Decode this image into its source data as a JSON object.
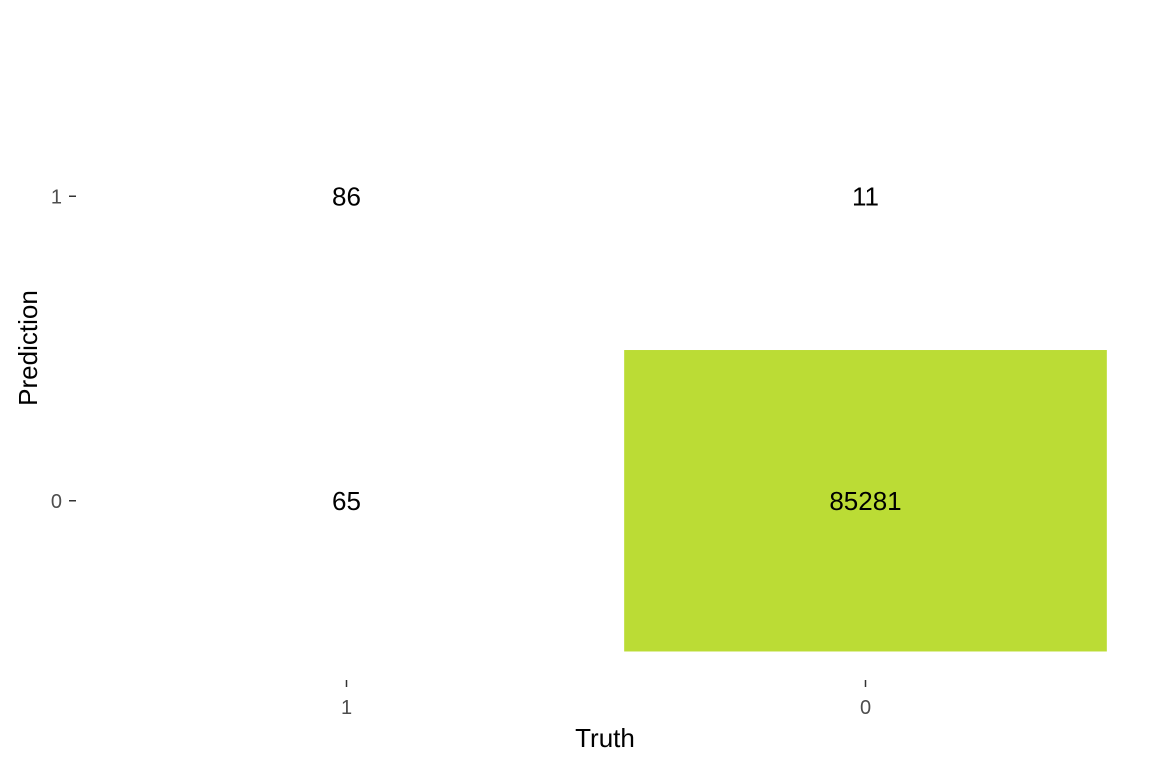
{
  "chart_data": {
    "type": "heatmap",
    "title": "",
    "xlabel": "Truth",
    "ylabel": "Prediction",
    "x_categories": [
      "1",
      "0"
    ],
    "y_categories": [
      "1",
      "0"
    ],
    "cells": [
      {
        "truth": "1",
        "prediction": "1",
        "value": 86
      },
      {
        "truth": "0",
        "prediction": "1",
        "value": 11
      },
      {
        "truth": "1",
        "prediction": "0",
        "value": 65
      },
      {
        "truth": "0",
        "prediction": "0",
        "value": 85281
      }
    ],
    "fill_colors": {
      "high": "#bbdc35",
      "low": "#ffffff"
    },
    "grid": false,
    "legend": "none"
  }
}
